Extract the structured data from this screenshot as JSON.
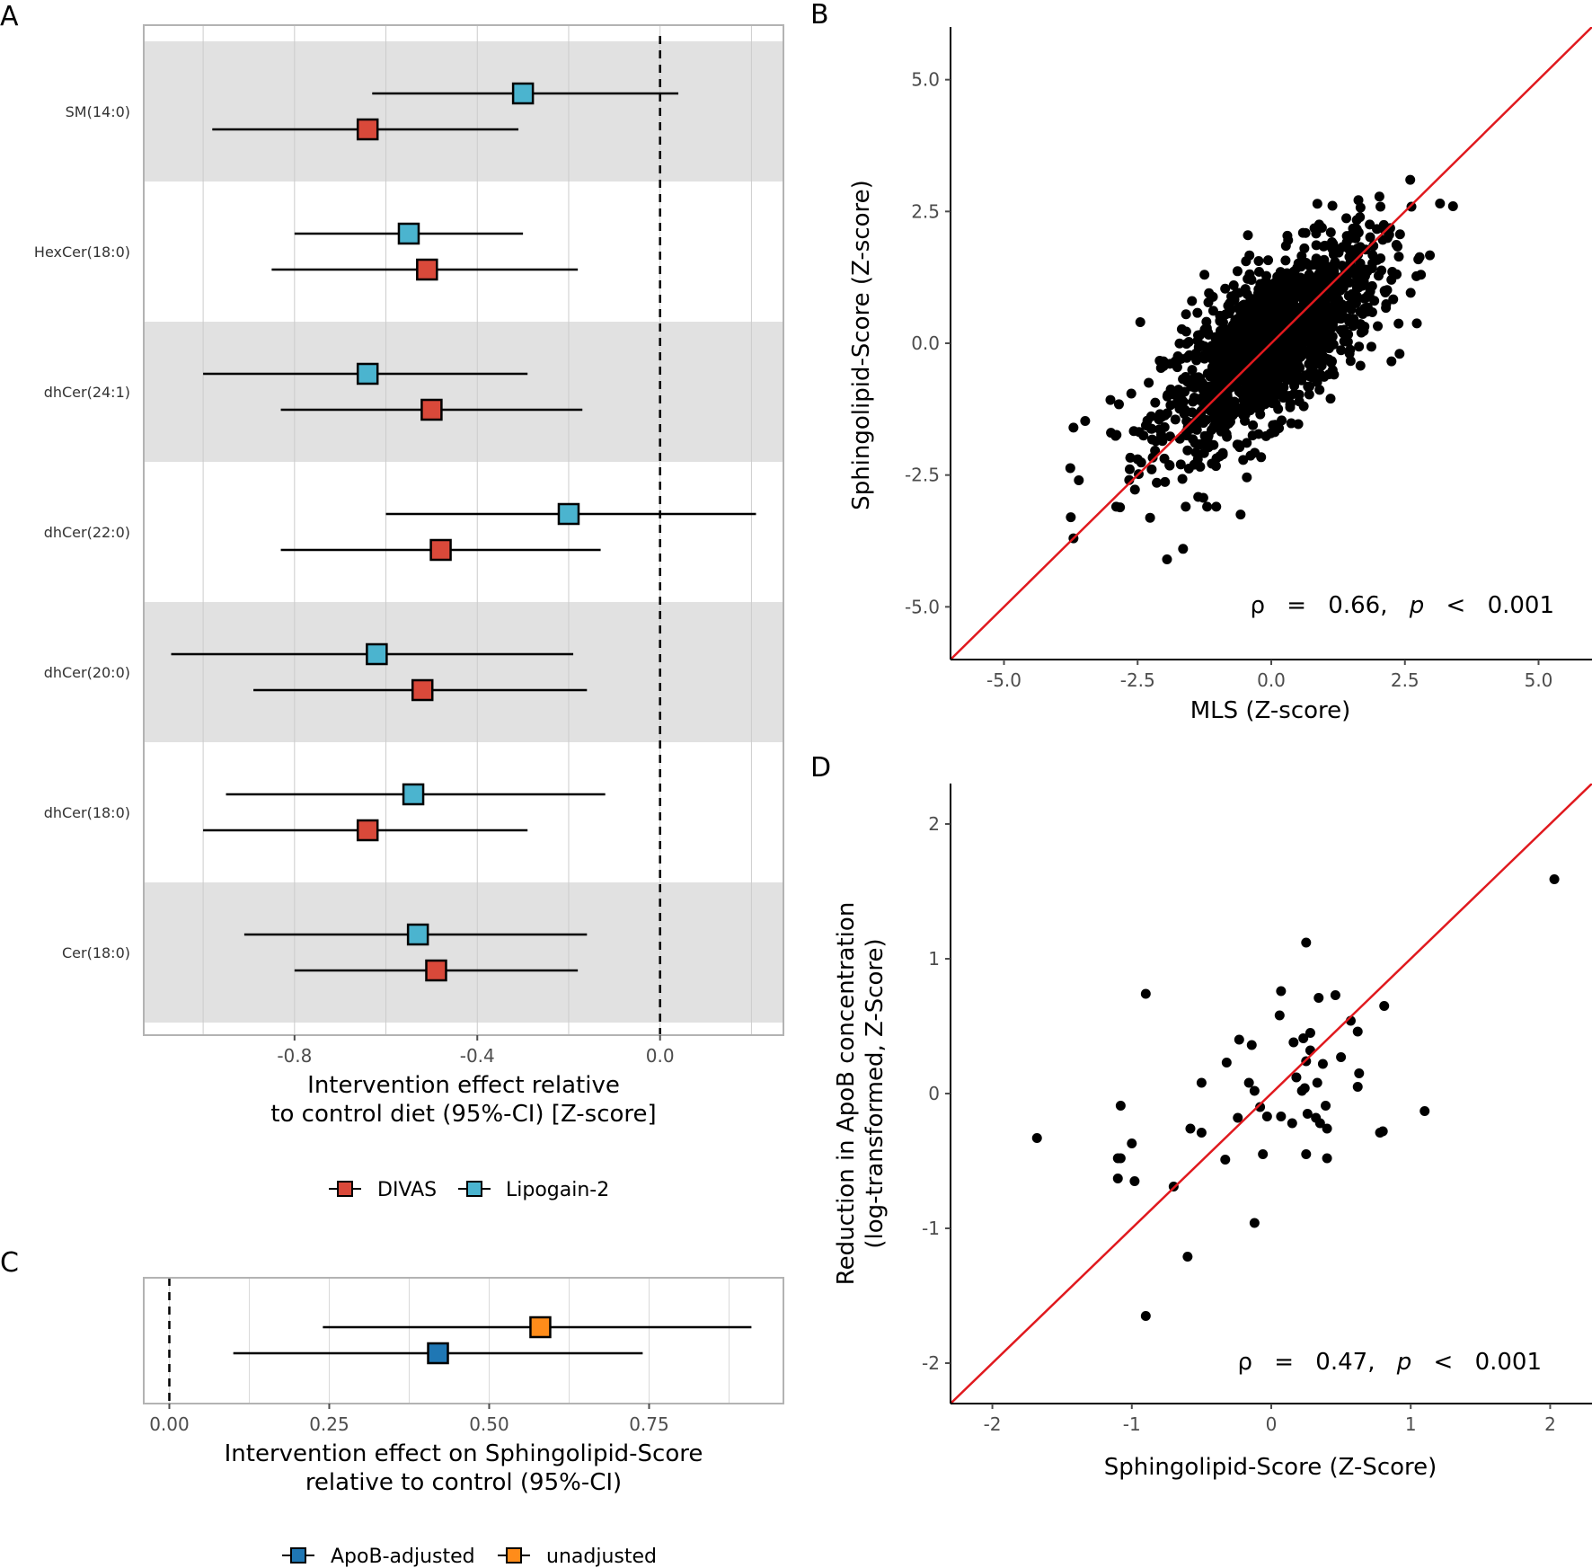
{
  "panels": {
    "a": "A",
    "b": "B",
    "c": "C",
    "d": "D"
  },
  "colors": {
    "divas": "#d9493a",
    "lipogain": "#4bb4cf",
    "apob": "#1f77b4",
    "unadjusted": "#ff8c1a",
    "identity": "#e0191e",
    "band": "#e1e1e1"
  },
  "chart_data": [
    {
      "panel": "A",
      "type": "forest",
      "categories": [
        "SM(14:0)",
        "HexCer(18:0)",
        "dhCer(24:1)",
        "dhCer(22:0)",
        "dhCer(20:0)",
        "dhCer(18:0)",
        "Cer(18:0)"
      ],
      "series": [
        {
          "name": "DIVAS",
          "estimate": [
            -0.64,
            -0.51,
            -0.5,
            -0.48,
            -0.52,
            -0.64,
            -0.49
          ],
          "lower": [
            -0.98,
            -0.85,
            -0.83,
            -0.83,
            -0.89,
            -1.0,
            -0.8
          ],
          "upper": [
            -0.31,
            -0.18,
            -0.17,
            -0.13,
            -0.16,
            -0.29,
            -0.18
          ]
        },
        {
          "name": "Lipogain-2",
          "estimate": [
            -0.3,
            -0.55,
            -0.64,
            -0.2,
            -0.62,
            -0.54,
            -0.53
          ],
          "lower": [
            -0.63,
            -0.8,
            -1.0,
            -0.6,
            -1.07,
            -0.95,
            -0.91
          ],
          "upper": [
            0.04,
            -0.3,
            -0.29,
            0.21,
            -0.19,
            -0.12,
            -0.16
          ]
        }
      ],
      "x_ticks": [
        "-0.8",
        "-0.4",
        "0.0"
      ],
      "xlim": [
        -1.13,
        0.27
      ],
      "reference_line": 0,
      "xlabel": [
        "Intervention effect relative",
        "to control diet (95%-CI) [Z-score]"
      ],
      "legend": [
        "DIVAS",
        "Lipogain-2"
      ],
      "legend_position": "bottom"
    },
    {
      "panel": "B",
      "type": "scatter",
      "xlabel": "MLS (Z-score)",
      "ylabel": "Sphingolipid-Score (Z-score)",
      "x_ticks": [
        "-5.0",
        "-2.5",
        "0.0",
        "2.5",
        "5.0"
      ],
      "y_ticks": [
        "5.0",
        "2.5",
        "0.0",
        "-2.5",
        "-5.0"
      ],
      "xlim": [
        -6.0,
        6.0
      ],
      "ylim": [
        -6.0,
        6.0
      ],
      "n_points": 1500,
      "correlation": 0.66,
      "fit_line": "identity",
      "outliers": [
        [
          3.4,
          2.6
        ],
        [
          2.6,
          3.1
        ],
        [
          2.8,
          1.3
        ],
        [
          2.4,
          -0.2
        ],
        [
          -3.7,
          -3.7
        ],
        [
          -3.75,
          -3.3
        ],
        [
          -3.7,
          -1.6
        ],
        [
          -3.6,
          -2.6
        ],
        [
          -1.95,
          -4.1
        ],
        [
          -1.65,
          -3.9
        ],
        [
          -2.45,
          0.4
        ],
        [
          -1.25,
          1.3
        ],
        [
          -2.5,
          -2.2
        ],
        [
          -2.9,
          -3.1
        ],
        [
          -1.6,
          -3.1
        ],
        [
          -1.2,
          -3.1
        ]
      ],
      "annotation": {
        "rho_symbol": "ρ",
        "eq": "=",
        "rho_value": "0.66,",
        "p_symbol": "p",
        "lt": "<",
        "p_value": "0.001"
      }
    },
    {
      "panel": "C",
      "type": "forest",
      "series": [
        {
          "name": "unadjusted",
          "estimate": 0.58,
          "lower": 0.24,
          "upper": 0.91
        },
        {
          "name": "ApoB-adjusted",
          "estimate": 0.42,
          "lower": 0.1,
          "upper": 0.74
        }
      ],
      "x_ticks": [
        "0.00",
        "0.25",
        "0.50",
        "0.75"
      ],
      "xlim": [
        -0.04,
        0.96
      ],
      "reference_line": 0,
      "xlabel": [
        "Intervention effect on Sphingolipid-Score",
        "relative to control (95%-CI)"
      ],
      "legend": [
        "ApoB-adjusted",
        "unadjusted"
      ],
      "legend_position": "bottom"
    },
    {
      "panel": "D",
      "type": "scatter",
      "xlabel": "Sphingolipid-Score (Z-Score)",
      "ylabel": [
        "Reduction in ApoB concentration",
        "(log-transformed, Z-Score)"
      ],
      "x_ticks": [
        "-2",
        "-1",
        "0",
        "1",
        "2"
      ],
      "y_ticks": [
        "2",
        "1",
        "0",
        "-1",
        "-2"
      ],
      "xlim": [
        -2.3,
        2.3
      ],
      "ylim": [
        -2.3,
        2.3
      ],
      "fit_line": "identity",
      "points": [
        [
          2.03,
          1.59
        ],
        [
          1.1,
          -0.13
        ],
        [
          0.81,
          0.65
        ],
        [
          0.8,
          -0.28
        ],
        [
          0.78,
          -0.29
        ],
        [
          0.57,
          0.54
        ],
        [
          0.62,
          0.46
        ],
        [
          0.63,
          0.15
        ],
        [
          0.62,
          0.05
        ],
        [
          0.5,
          0.27
        ],
        [
          0.46,
          0.73
        ],
        [
          0.34,
          0.71
        ],
        [
          0.25,
          1.12
        ],
        [
          0.07,
          0.76
        ],
        [
          0.06,
          0.58
        ],
        [
          0.16,
          0.38
        ],
        [
          0.23,
          0.41
        ],
        [
          0.28,
          0.45
        ],
        [
          0.28,
          0.32
        ],
        [
          0.25,
          0.24
        ],
        [
          0.37,
          0.22
        ],
        [
          0.18,
          0.12
        ],
        [
          0.33,
          0.08
        ],
        [
          0.24,
          0.04
        ],
        [
          0.22,
          0.02
        ],
        [
          0.39,
          -0.09
        ],
        [
          0.26,
          -0.15
        ],
        [
          0.32,
          -0.18
        ],
        [
          0.35,
          -0.22
        ],
        [
          0.4,
          -0.26
        ],
        [
          0.15,
          -0.22
        ],
        [
          0.07,
          -0.17
        ],
        [
          -0.03,
          -0.17
        ],
        [
          -0.08,
          -0.1
        ],
        [
          -0.16,
          0.08
        ],
        [
          -0.12,
          0.02
        ],
        [
          -0.14,
          0.36
        ],
        [
          -0.23,
          0.4
        ],
        [
          -0.32,
          0.23
        ],
        [
          -0.5,
          0.08
        ],
        [
          -0.58,
          -0.26
        ],
        [
          -0.5,
          -0.29
        ],
        [
          -0.24,
          -0.18
        ],
        [
          -0.33,
          -0.49
        ],
        [
          -0.06,
          -0.45
        ],
        [
          0.25,
          -0.45
        ],
        [
          0.4,
          -0.48
        ],
        [
          -0.12,
          -0.96
        ],
        [
          -0.7,
          -0.69
        ],
        [
          -0.6,
          -1.21
        ],
        [
          -0.9,
          -1.65
        ],
        [
          -0.9,
          0.74
        ],
        [
          -1.0,
          -0.37
        ],
        [
          -1.08,
          -0.09
        ],
        [
          -1.1,
          -0.48
        ],
        [
          -1.08,
          -0.48
        ],
        [
          -1.1,
          -0.63
        ],
        [
          -0.98,
          -0.65
        ],
        [
          -1.68,
          -0.33
        ]
      ],
      "annotation": {
        "rho_symbol": "ρ",
        "eq": "=",
        "rho_value": "0.47,",
        "p_symbol": "p",
        "lt": "<",
        "p_value": "0.001"
      }
    }
  ]
}
